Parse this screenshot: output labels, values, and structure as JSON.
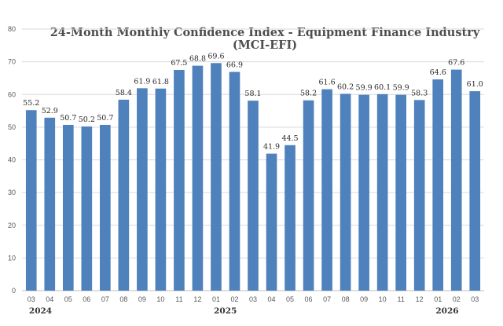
{
  "chart_data": {
    "type": "bar",
    "title_lines": [
      "24-Month Monthly Confidence Index - Equipment Finance Industry",
      "(MCI-EFI)"
    ],
    "categories": [
      "03",
      "04",
      "05",
      "06",
      "07",
      "08",
      "09",
      "10",
      "11",
      "12",
      "01",
      "02",
      "03",
      "04",
      "05",
      "06",
      "07",
      "08",
      "09",
      "10",
      "11",
      "12",
      "01",
      "02",
      "03"
    ],
    "values": [
      55.2,
      52.9,
      50.7,
      50.2,
      50.7,
      58.4,
      61.9,
      61.8,
      67.5,
      68.8,
      69.6,
      66.9,
      58.1,
      41.9,
      44.5,
      58.2,
      61.6,
      60.2,
      59.9,
      60.1,
      59.9,
      58.3,
      64.6,
      67.6,
      61.0
    ],
    "data_labels": [
      "55.2",
      "52.9",
      "50.7",
      "50.2",
      "50.7",
      "58.4",
      "61.9",
      "61.8",
      "67.5",
      "68.8",
      "69.6",
      "66.9",
      "58.1",
      "41.9",
      "44.5",
      "58.2",
      "61.6",
      "60.2",
      "59.9",
      "60.1",
      "59.9",
      "58.3",
      "64.6",
      "67.6",
      "61.0"
    ],
    "year_groups": [
      {
        "label": "2024",
        "start_index": 0
      },
      {
        "label": "2025",
        "start_index": 10
      },
      {
        "label": "2026",
        "start_index": 22
      }
    ],
    "ylim": [
      0,
      80
    ],
    "yticks": [
      "0",
      "10",
      "20",
      "30",
      "40",
      "50",
      "60",
      "70",
      "80"
    ],
    "grid": true,
    "legend": "none",
    "bar_color": "#4f81bd",
    "xlabel": "",
    "ylabel": ""
  }
}
